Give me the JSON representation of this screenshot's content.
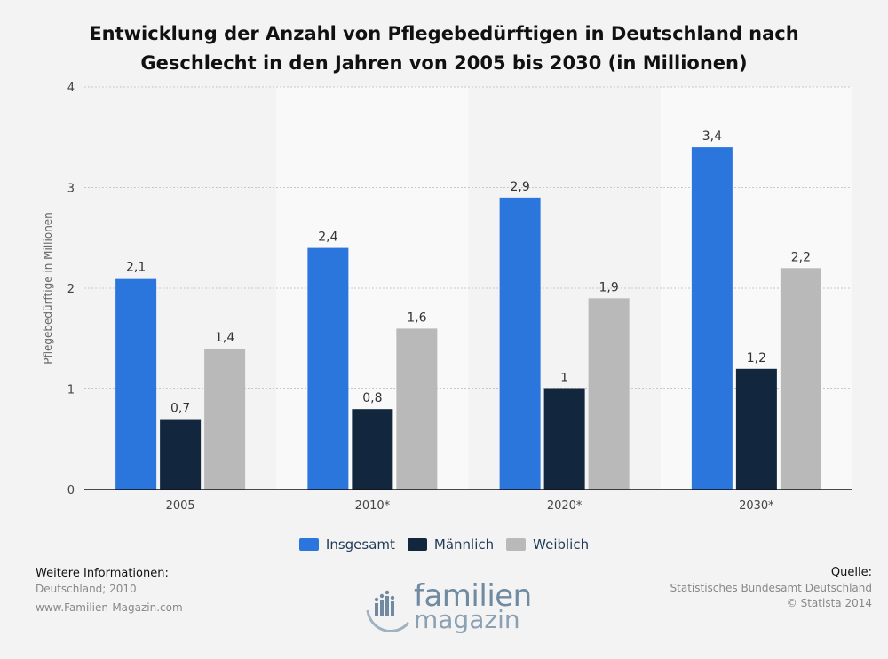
{
  "chart_data": {
    "type": "bar",
    "title": [
      "Entwicklung der Anzahl von Pflegebedürftigen in Deutschland nach",
      "Geschlecht in den Jahren von 2005 bis 2030 (in Millionen)"
    ],
    "ylabel": "Pflegebedürftige in Millionen",
    "xlabel": "",
    "categories": [
      "2005",
      "2010*",
      "2020*",
      "2030*"
    ],
    "ylim": [
      0,
      4
    ],
    "yticks": [
      "0",
      "1",
      "2",
      "3",
      "4"
    ],
    "grid": "on",
    "legend_position": "bottom",
    "series": [
      {
        "name": "Insgesamt",
        "color": "#2b76dd",
        "values": [
          2.1,
          2.4,
          2.9,
          3.4
        ],
        "labels": [
          "2,1",
          "2,4",
          "2,9",
          "3,4"
        ]
      },
      {
        "name": "Männlich",
        "color": "#12263d",
        "values": [
          0.7,
          0.8,
          1.0,
          1.2
        ],
        "labels": [
          "0,7",
          "0,8",
          "1",
          "1,2"
        ]
      },
      {
        "name": "Weiblich",
        "color": "#b9b9b9",
        "values": [
          1.4,
          1.6,
          1.9,
          2.2
        ],
        "labels": [
          "1,4",
          "1,6",
          "1,9",
          "2,2"
        ]
      }
    ]
  },
  "footer": {
    "info_heading": "Weitere Informationen:",
    "info_line1": "Deutschland; 2010",
    "info_line2": "www.Familien-Magazin.com",
    "source_heading": "Quelle:",
    "source_line1": "Statistisches Bundesamt Deutschland",
    "source_line2": "© Statista 2014"
  },
  "logo": {
    "word1": "familien",
    "word2": "magazin"
  }
}
